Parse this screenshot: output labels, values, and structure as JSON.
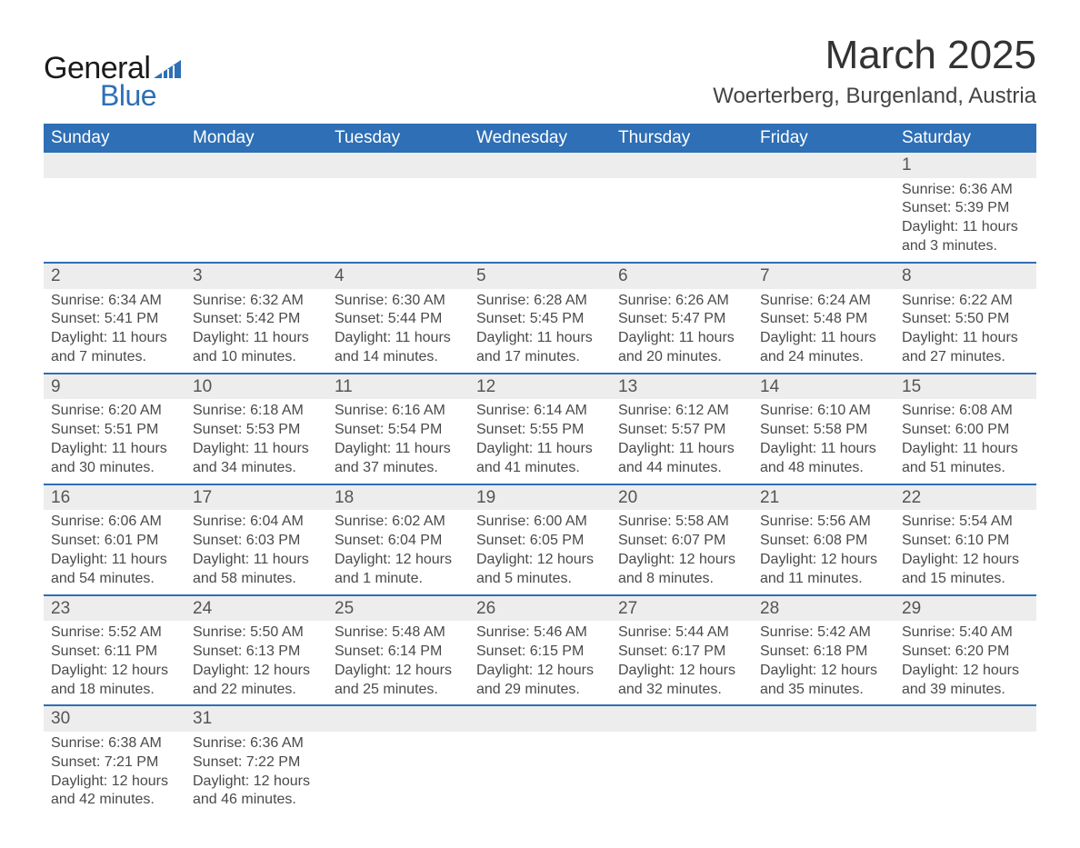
{
  "logo": {
    "text1": "General",
    "text2": "Blue",
    "tri_color": "#2e6fb5"
  },
  "title": "March 2025",
  "subtitle": "Woerterberg, Burgenland, Austria",
  "colors": {
    "header_bg": "#2e6fb5",
    "header_text": "#ffffff",
    "daynum_bg": "#ededed",
    "row_border": "#2e6fb5",
    "body_text": "#4a4a4a",
    "background": "#ffffff"
  },
  "typography": {
    "body_fontsize_pt": 12,
    "title_fontsize_pt": 33,
    "subtitle_fontsize_pt": 18,
    "header_fontsize_pt": 14
  },
  "weekdays": [
    "Sunday",
    "Monday",
    "Tuesday",
    "Wednesday",
    "Thursday",
    "Friday",
    "Saturday"
  ],
  "weeks": [
    [
      null,
      null,
      null,
      null,
      null,
      null,
      {
        "n": "1",
        "sr": "Sunrise: 6:36 AM",
        "ss": "Sunset: 5:39 PM",
        "d1": "Daylight: 11 hours",
        "d2": "and 3 minutes."
      }
    ],
    [
      {
        "n": "2",
        "sr": "Sunrise: 6:34 AM",
        "ss": "Sunset: 5:41 PM",
        "d1": "Daylight: 11 hours",
        "d2": "and 7 minutes."
      },
      {
        "n": "3",
        "sr": "Sunrise: 6:32 AM",
        "ss": "Sunset: 5:42 PM",
        "d1": "Daylight: 11 hours",
        "d2": "and 10 minutes."
      },
      {
        "n": "4",
        "sr": "Sunrise: 6:30 AM",
        "ss": "Sunset: 5:44 PM",
        "d1": "Daylight: 11 hours",
        "d2": "and 14 minutes."
      },
      {
        "n": "5",
        "sr": "Sunrise: 6:28 AM",
        "ss": "Sunset: 5:45 PM",
        "d1": "Daylight: 11 hours",
        "d2": "and 17 minutes."
      },
      {
        "n": "6",
        "sr": "Sunrise: 6:26 AM",
        "ss": "Sunset: 5:47 PM",
        "d1": "Daylight: 11 hours",
        "d2": "and 20 minutes."
      },
      {
        "n": "7",
        "sr": "Sunrise: 6:24 AM",
        "ss": "Sunset: 5:48 PM",
        "d1": "Daylight: 11 hours",
        "d2": "and 24 minutes."
      },
      {
        "n": "8",
        "sr": "Sunrise: 6:22 AM",
        "ss": "Sunset: 5:50 PM",
        "d1": "Daylight: 11 hours",
        "d2": "and 27 minutes."
      }
    ],
    [
      {
        "n": "9",
        "sr": "Sunrise: 6:20 AM",
        "ss": "Sunset: 5:51 PM",
        "d1": "Daylight: 11 hours",
        "d2": "and 30 minutes."
      },
      {
        "n": "10",
        "sr": "Sunrise: 6:18 AM",
        "ss": "Sunset: 5:53 PM",
        "d1": "Daylight: 11 hours",
        "d2": "and 34 minutes."
      },
      {
        "n": "11",
        "sr": "Sunrise: 6:16 AM",
        "ss": "Sunset: 5:54 PM",
        "d1": "Daylight: 11 hours",
        "d2": "and 37 minutes."
      },
      {
        "n": "12",
        "sr": "Sunrise: 6:14 AM",
        "ss": "Sunset: 5:55 PM",
        "d1": "Daylight: 11 hours",
        "d2": "and 41 minutes."
      },
      {
        "n": "13",
        "sr": "Sunrise: 6:12 AM",
        "ss": "Sunset: 5:57 PM",
        "d1": "Daylight: 11 hours",
        "d2": "and 44 minutes."
      },
      {
        "n": "14",
        "sr": "Sunrise: 6:10 AM",
        "ss": "Sunset: 5:58 PM",
        "d1": "Daylight: 11 hours",
        "d2": "and 48 minutes."
      },
      {
        "n": "15",
        "sr": "Sunrise: 6:08 AM",
        "ss": "Sunset: 6:00 PM",
        "d1": "Daylight: 11 hours",
        "d2": "and 51 minutes."
      }
    ],
    [
      {
        "n": "16",
        "sr": "Sunrise: 6:06 AM",
        "ss": "Sunset: 6:01 PM",
        "d1": "Daylight: 11 hours",
        "d2": "and 54 minutes."
      },
      {
        "n": "17",
        "sr": "Sunrise: 6:04 AM",
        "ss": "Sunset: 6:03 PM",
        "d1": "Daylight: 11 hours",
        "d2": "and 58 minutes."
      },
      {
        "n": "18",
        "sr": "Sunrise: 6:02 AM",
        "ss": "Sunset: 6:04 PM",
        "d1": "Daylight: 12 hours",
        "d2": "and 1 minute."
      },
      {
        "n": "19",
        "sr": "Sunrise: 6:00 AM",
        "ss": "Sunset: 6:05 PM",
        "d1": "Daylight: 12 hours",
        "d2": "and 5 minutes."
      },
      {
        "n": "20",
        "sr": "Sunrise: 5:58 AM",
        "ss": "Sunset: 6:07 PM",
        "d1": "Daylight: 12 hours",
        "d2": "and 8 minutes."
      },
      {
        "n": "21",
        "sr": "Sunrise: 5:56 AM",
        "ss": "Sunset: 6:08 PM",
        "d1": "Daylight: 12 hours",
        "d2": "and 11 minutes."
      },
      {
        "n": "22",
        "sr": "Sunrise: 5:54 AM",
        "ss": "Sunset: 6:10 PM",
        "d1": "Daylight: 12 hours",
        "d2": "and 15 minutes."
      }
    ],
    [
      {
        "n": "23",
        "sr": "Sunrise: 5:52 AM",
        "ss": "Sunset: 6:11 PM",
        "d1": "Daylight: 12 hours",
        "d2": "and 18 minutes."
      },
      {
        "n": "24",
        "sr": "Sunrise: 5:50 AM",
        "ss": "Sunset: 6:13 PM",
        "d1": "Daylight: 12 hours",
        "d2": "and 22 minutes."
      },
      {
        "n": "25",
        "sr": "Sunrise: 5:48 AM",
        "ss": "Sunset: 6:14 PM",
        "d1": "Daylight: 12 hours",
        "d2": "and 25 minutes."
      },
      {
        "n": "26",
        "sr": "Sunrise: 5:46 AM",
        "ss": "Sunset: 6:15 PM",
        "d1": "Daylight: 12 hours",
        "d2": "and 29 minutes."
      },
      {
        "n": "27",
        "sr": "Sunrise: 5:44 AM",
        "ss": "Sunset: 6:17 PM",
        "d1": "Daylight: 12 hours",
        "d2": "and 32 minutes."
      },
      {
        "n": "28",
        "sr": "Sunrise: 5:42 AM",
        "ss": "Sunset: 6:18 PM",
        "d1": "Daylight: 12 hours",
        "d2": "and 35 minutes."
      },
      {
        "n": "29",
        "sr": "Sunrise: 5:40 AM",
        "ss": "Sunset: 6:20 PM",
        "d1": "Daylight: 12 hours",
        "d2": "and 39 minutes."
      }
    ],
    [
      {
        "n": "30",
        "sr": "Sunrise: 6:38 AM",
        "ss": "Sunset: 7:21 PM",
        "d1": "Daylight: 12 hours",
        "d2": "and 42 minutes."
      },
      {
        "n": "31",
        "sr": "Sunrise: 6:36 AM",
        "ss": "Sunset: 7:22 PM",
        "d1": "Daylight: 12 hours",
        "d2": "and 46 minutes."
      },
      null,
      null,
      null,
      null,
      null
    ]
  ]
}
